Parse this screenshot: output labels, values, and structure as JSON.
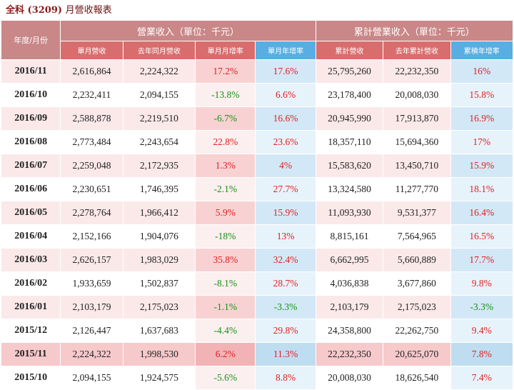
{
  "report": {
    "company": "全科",
    "code": "(3209)",
    "title_suffix": "月營收報表"
  },
  "headers": {
    "period": "年度/月份",
    "group_monthly": "營業收入（單位：千元）",
    "group_cumulative": "累計營業收入（單位：千元）",
    "columns": [
      "單月營收",
      "去年同月營收",
      "單月月增率",
      "單月年增率",
      "累計營收",
      "去年累計營收",
      "累積年增率"
    ]
  },
  "colors": {
    "increase": "#e02020",
    "decrease": "#189018",
    "header_red": "#d96d6d",
    "header_blue": "#58aee2"
  },
  "rows": [
    {
      "period": "2016/11",
      "revenue": "2,616,864",
      "last_year": "2,224,322",
      "mom": "17.2%",
      "yoy": "17.6%",
      "cum": "25,795,260",
      "cum_last": "22,232,350",
      "cum_yoy": "16%"
    },
    {
      "period": "2016/10",
      "revenue": "2,232,411",
      "last_year": "2,094,155",
      "mom": "-13.8%",
      "yoy": "6.6%",
      "cum": "23,178,400",
      "cum_last": "20,008,030",
      "cum_yoy": "15.8%"
    },
    {
      "period": "2016/09",
      "revenue": "2,588,878",
      "last_year": "2,219,510",
      "mom": "-6.7%",
      "yoy": "16.6%",
      "cum": "20,945,990",
      "cum_last": "17,913,870",
      "cum_yoy": "16.9%"
    },
    {
      "period": "2016/08",
      "revenue": "2,773,484",
      "last_year": "2,243,654",
      "mom": "22.8%",
      "yoy": "23.6%",
      "cum": "18,357,110",
      "cum_last": "15,694,360",
      "cum_yoy": "17%"
    },
    {
      "period": "2016/07",
      "revenue": "2,259,048",
      "last_year": "2,172,935",
      "mom": "1.3%",
      "yoy": "4%",
      "cum": "15,583,620",
      "cum_last": "13,450,710",
      "cum_yoy": "15.9%"
    },
    {
      "period": "2016/06",
      "revenue": "2,230,651",
      "last_year": "1,746,395",
      "mom": "-2.1%",
      "yoy": "27.7%",
      "cum": "13,324,580",
      "cum_last": "11,277,770",
      "cum_yoy": "18.1%"
    },
    {
      "period": "2016/05",
      "revenue": "2,278,764",
      "last_year": "1,966,412",
      "mom": "5.9%",
      "yoy": "15.9%",
      "cum": "11,093,930",
      "cum_last": "9,531,377",
      "cum_yoy": "16.4%"
    },
    {
      "period": "2016/04",
      "revenue": "2,152,166",
      "last_year": "1,904,076",
      "mom": "-18%",
      "yoy": "13%",
      "cum": "8,815,161",
      "cum_last": "7,564,965",
      "cum_yoy": "16.5%"
    },
    {
      "period": "2016/03",
      "revenue": "2,626,157",
      "last_year": "1,983,029",
      "mom": "35.8%",
      "yoy": "32.4%",
      "cum": "6,662,995",
      "cum_last": "5,660,889",
      "cum_yoy": "17.7%"
    },
    {
      "period": "2016/02",
      "revenue": "1,933,659",
      "last_year": "1,502,837",
      "mom": "-8.1%",
      "yoy": "28.7%",
      "cum": "4,036,838",
      "cum_last": "3,677,860",
      "cum_yoy": "9.8%"
    },
    {
      "period": "2016/01",
      "revenue": "2,103,179",
      "last_year": "2,175,023",
      "mom": "-1.1%",
      "yoy": "-3.3%",
      "cum": "2,103,179",
      "cum_last": "2,175,023",
      "cum_yoy": "-3.3%"
    },
    {
      "period": "2015/12",
      "revenue": "2,126,447",
      "last_year": "1,637,683",
      "mom": "-4.4%",
      "yoy": "29.8%",
      "cum": "24,358,800",
      "cum_last": "22,262,750",
      "cum_yoy": "9.4%"
    },
    {
      "period": "2015/11",
      "revenue": "2,224,322",
      "last_year": "1,998,530",
      "mom": "6.2%",
      "yoy": "11.3%",
      "cum": "22,232,350",
      "cum_last": "20,625,070",
      "cum_yoy": "7.8%",
      "selected": true
    },
    {
      "period": "2015/10",
      "revenue": "2,094,155",
      "last_year": "1,924,575",
      "mom": "-5.6%",
      "yoy": "8.8%",
      "cum": "20,008,030",
      "cum_last": "18,626,540",
      "cum_yoy": "7.4%"
    }
  ]
}
